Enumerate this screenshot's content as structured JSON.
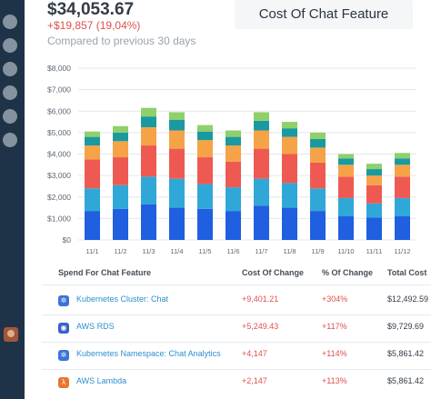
{
  "kpi": {
    "value": "$34,053.67",
    "delta": "+$19,857 (19,04%)",
    "compare": "Compared to previous 30 days"
  },
  "card": {
    "title": "Cost Of Chat Feature"
  },
  "icons": [
    "nav-dot-icon",
    "user-avatar-icon",
    "kubernetes-icon",
    "aws-rds-icon",
    "aws-lambda-icon"
  ],
  "colors": {
    "sidebar": "#1f3348",
    "negative": "#e0504f",
    "link": "#2d8fd0"
  },
  "chart_data": {
    "type": "bar",
    "stacked": true,
    "categories": [
      "11/1",
      "11/2",
      "11/3",
      "11/4",
      "11/5",
      "11/6",
      "11/7",
      "11/8",
      "11/9",
      "11/10",
      "11/11",
      "11/12"
    ],
    "y_tick_labels": [
      "$0",
      "$1,000",
      "$2,000",
      "$3,000",
      "$4,000",
      "$5,000",
      "$6,000",
      "$7,000",
      "$8,000"
    ],
    "ylim": [
      0,
      8000
    ],
    "grid": true,
    "series": [
      {
        "color": "#1f5fe0",
        "values": [
          1350,
          1450,
          1650,
          1500,
          1450,
          1350,
          1600,
          1500,
          1350,
          1100,
          1050,
          1100
        ]
      },
      {
        "color": "#2fa8d8",
        "values": [
          1050,
          1100,
          1300,
          1350,
          1150,
          1100,
          1250,
          1150,
          1050,
          850,
          650,
          850
        ]
      },
      {
        "color": "#ee5a52",
        "values": [
          1350,
          1300,
          1450,
          1400,
          1250,
          1200,
          1400,
          1350,
          1200,
          1000,
          850,
          1000
        ]
      },
      {
        "color": "#f6a348",
        "values": [
          650,
          750,
          850,
          850,
          800,
          750,
          850,
          800,
          700,
          550,
          450,
          550
        ]
      },
      {
        "color": "#1a9aa0",
        "values": [
          400,
          400,
          500,
          500,
          400,
          400,
          450,
          400,
          400,
          300,
          300,
          300
        ]
      },
      {
        "color": "#8fd06a",
        "values": [
          250,
          300,
          400,
          350,
          300,
          300,
          400,
          300,
          300,
          200,
          250,
          250
        ]
      }
    ]
  },
  "table": {
    "headers": {
      "spend": "Spend For Chat Feature",
      "cost_change": "Cost Of Change",
      "pct_change": "% Of Change",
      "total": "Total Cost"
    },
    "rows": [
      {
        "name": "Kubernetes Cluster: Chat",
        "cost_change": "+9,401.21",
        "pct_change": "+304%",
        "total": "$12,492.59",
        "icon": "kubernetes-icon",
        "icon_color": "#3b73d9",
        "icon_glyph": "✲"
      },
      {
        "name": "AWS RDS",
        "cost_change": "+5,249.43",
        "pct_change": "+117%",
        "total": "$9,729.69",
        "icon": "aws-rds-icon",
        "icon_color": "#3b5fc8",
        "icon_glyph": "◉"
      },
      {
        "name": "Kubernetes Namespace: Chat Analytics",
        "cost_change": "+4,147",
        "pct_change": "+114%",
        "total": "$5,861.42",
        "icon": "kubernetes-icon",
        "icon_color": "#3b73d9",
        "icon_glyph": "✲"
      },
      {
        "name": "AWS Lambda",
        "cost_change": "+2,147",
        "pct_change": "+113%",
        "total": "$5,861.42",
        "icon": "aws-lambda-icon",
        "icon_color": "#e8772e",
        "icon_glyph": "λ"
      }
    ]
  }
}
